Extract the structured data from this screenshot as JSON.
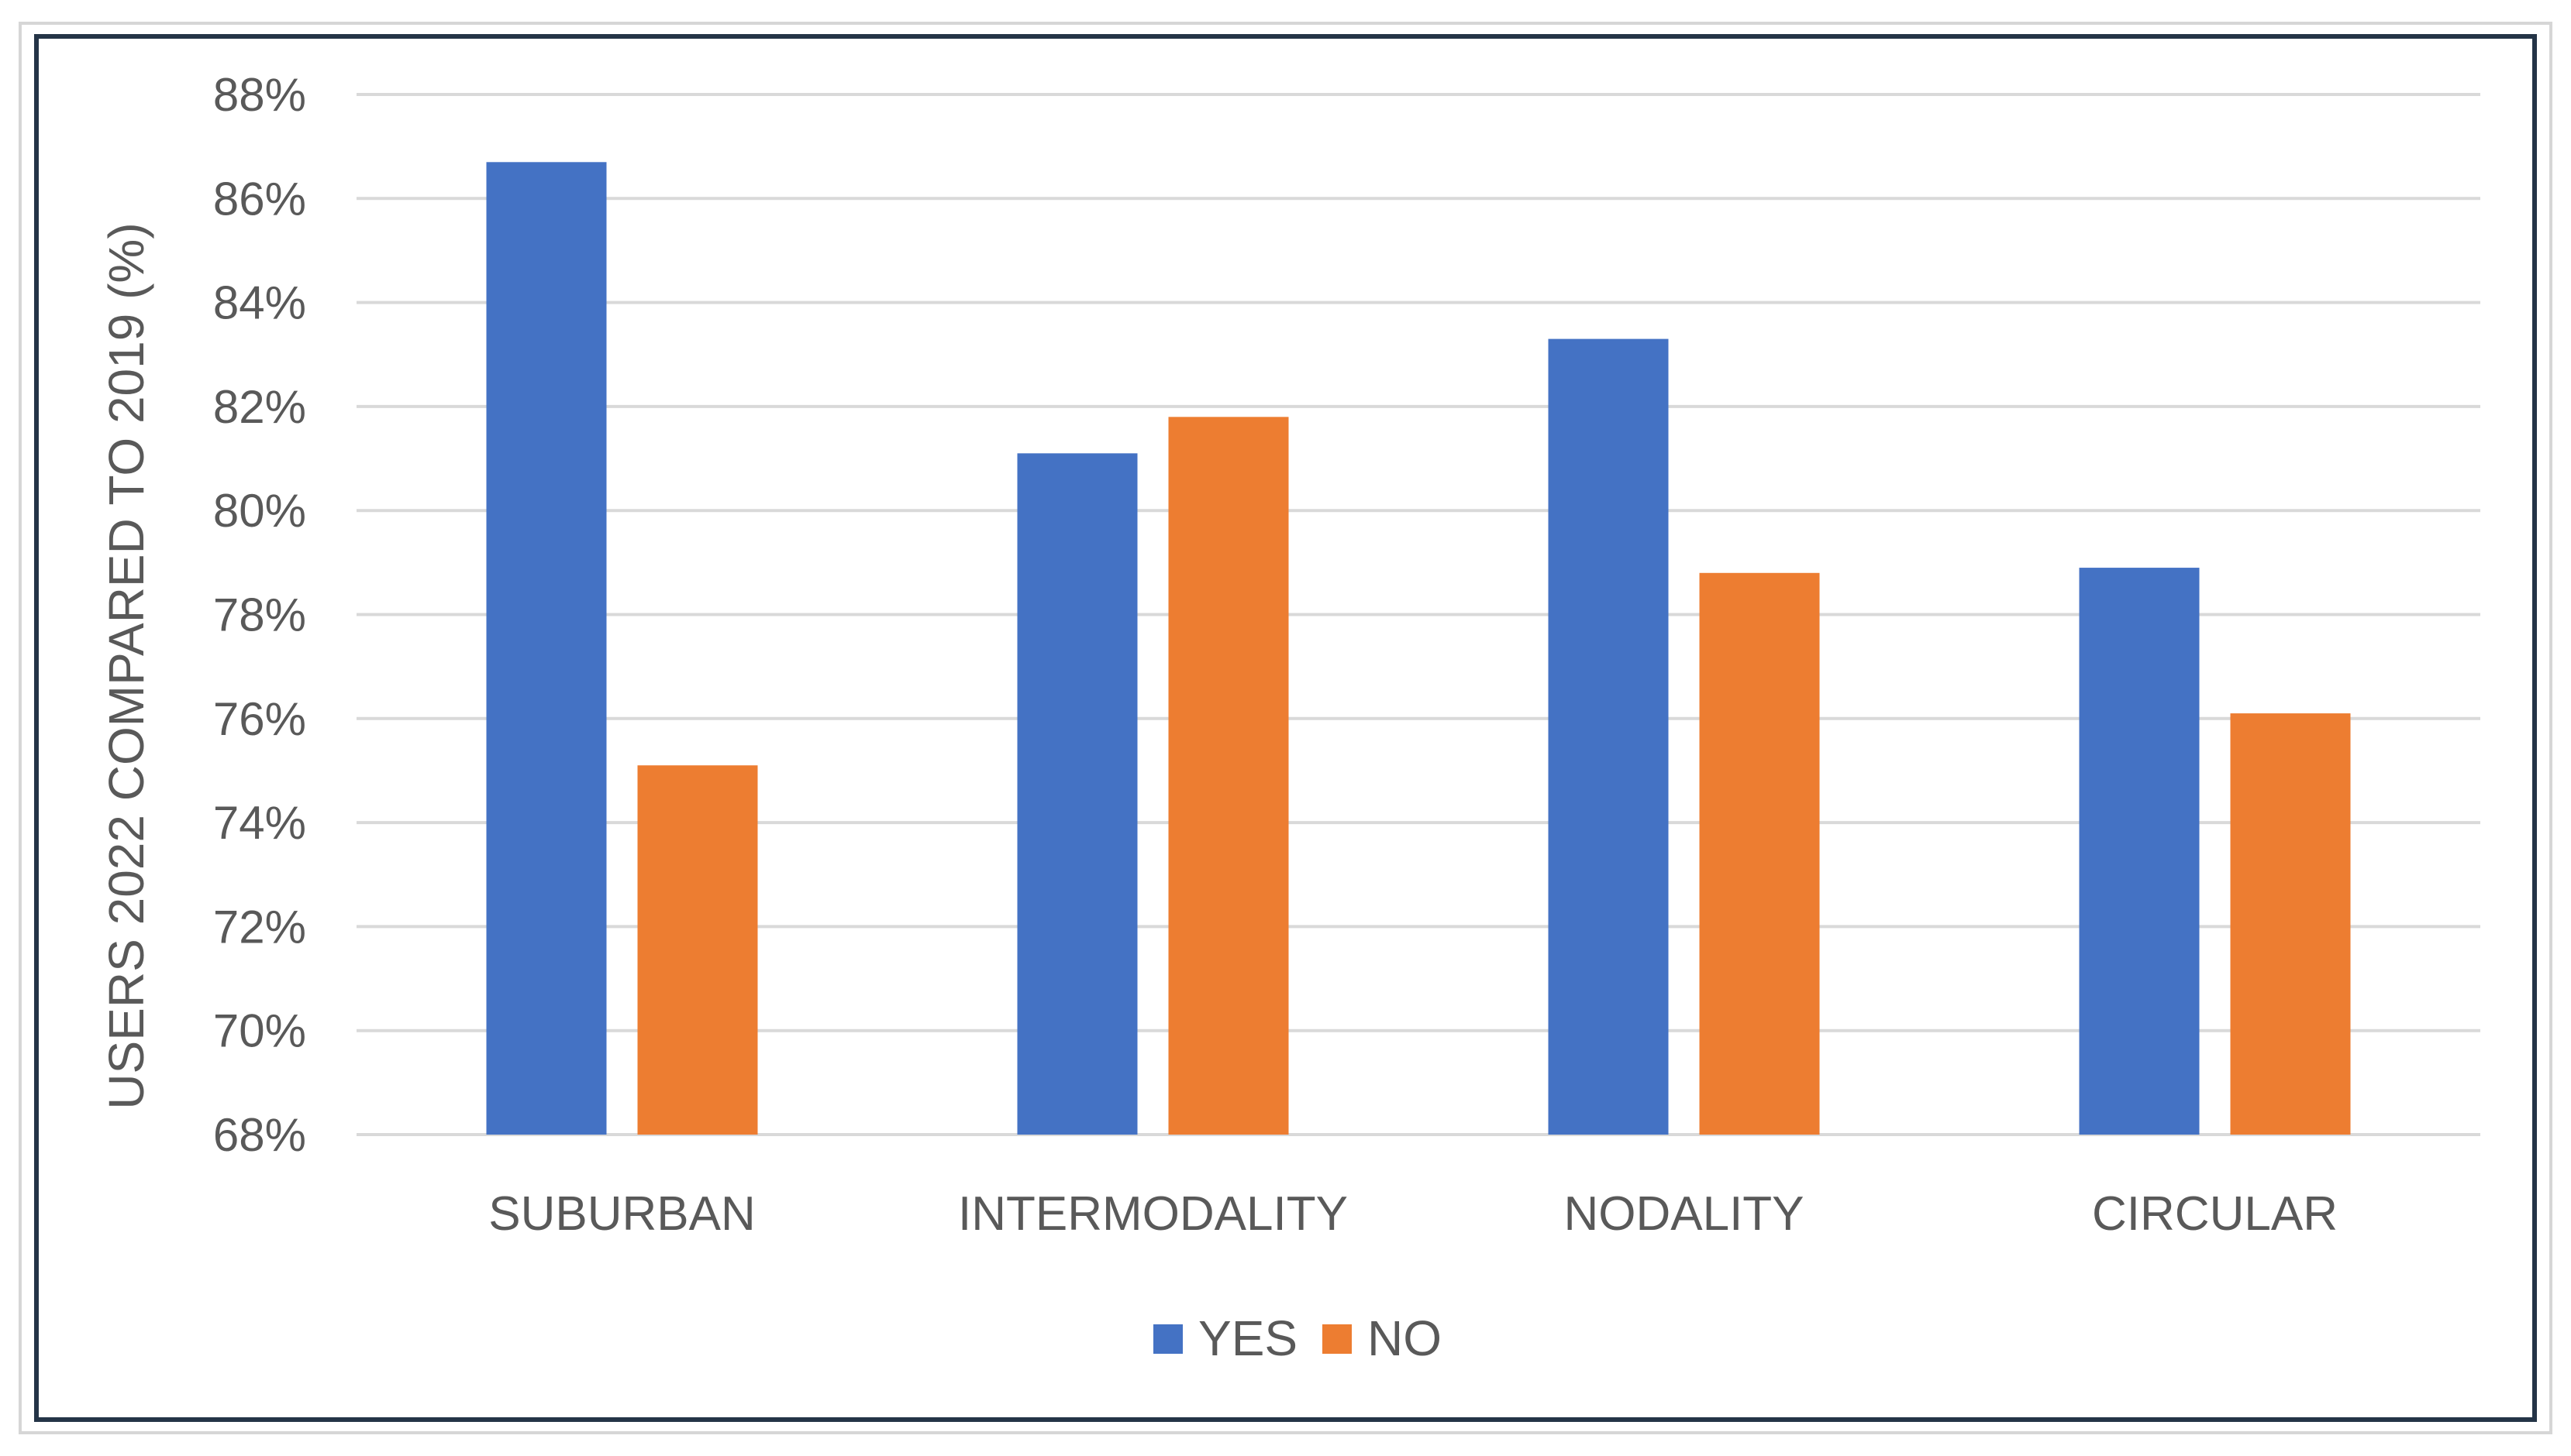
{
  "chart_data": {
    "type": "bar",
    "title": "",
    "xlabel": "",
    "ylabel": "USERS 2022 COMPARED TO 2019 (%)",
    "categories": [
      "SUBURBAN",
      "INTERMODALITY",
      "NODALITY",
      "CIRCULAR"
    ],
    "series": [
      {
        "name": "YES",
        "color": "#4472C4",
        "values": [
          86.7,
          81.1,
          83.3,
          78.9
        ]
      },
      {
        "name": "NO",
        "color": "#ED7D31",
        "values": [
          75.1,
          81.8,
          78.8,
          76.1
        ]
      }
    ],
    "ylim": [
      68,
      88
    ],
    "yticks": [
      68,
      70,
      72,
      74,
      76,
      78,
      80,
      82,
      84,
      86,
      88
    ],
    "ytick_labels": [
      "68%",
      "70%",
      "72%",
      "74%",
      "76%",
      "78%",
      "80%",
      "82%",
      "84%",
      "86%",
      "88%"
    ],
    "grid": true,
    "gridline_color": "#d9d9d9",
    "legend_position": "bottom"
  }
}
